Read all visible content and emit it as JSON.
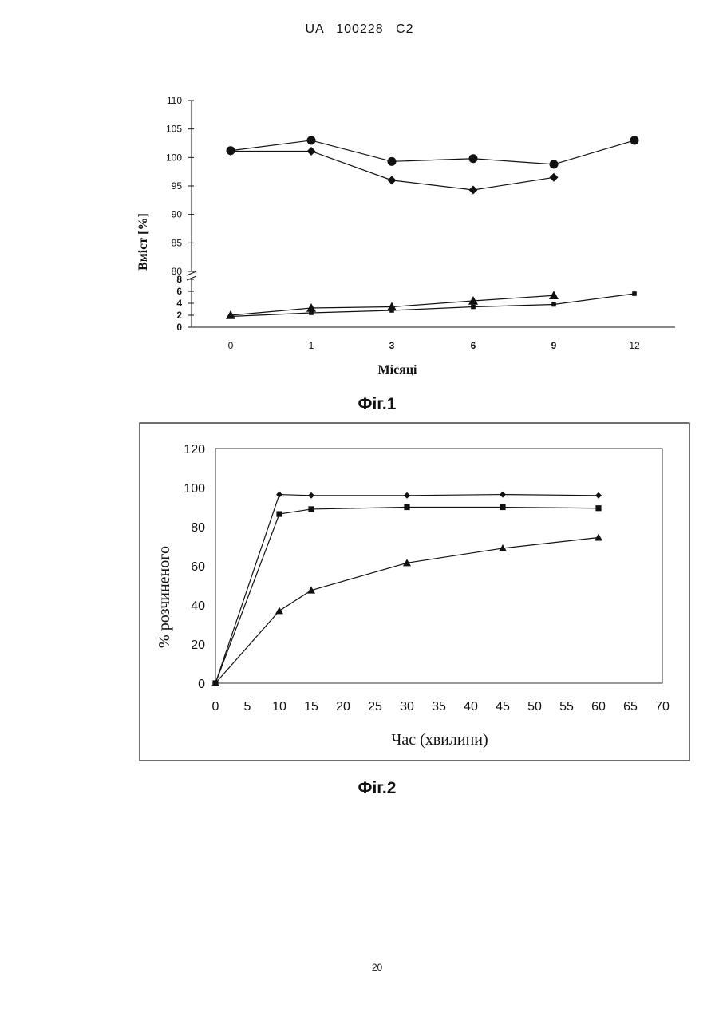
{
  "header": {
    "text": "UA   100228   C2"
  },
  "figures": [
    {
      "caption": "Фіг.1"
    },
    {
      "caption": "Фіг.2"
    }
  ],
  "page_number": "20",
  "chart_data": [
    {
      "type": "line",
      "xlabel": "Місяці",
      "ylabel": "Вміст [%]",
      "categories": [
        "0",
        "1",
        "3",
        "6",
        "9",
        "12"
      ],
      "y_axis_upper": {
        "ylim": [
          80,
          110
        ],
        "ticks": [
          "110",
          "105",
          "100",
          "95",
          "90",
          "85",
          "80"
        ]
      },
      "y_axis_lower": {
        "ylim": [
          0,
          8
        ],
        "ticks": [
          "8",
          "6",
          "4",
          "2",
          "0"
        ]
      },
      "broken_axis": true,
      "grid": false,
      "series": [
        {
          "marker": "circle",
          "values": [
            101.2,
            103.0,
            99.3,
            99.8,
            98.8,
            103.0
          ]
        },
        {
          "marker": "diamond",
          "values": [
            101.1,
            101.1,
            96.0,
            94.3,
            96.5,
            null
          ]
        },
        {
          "marker": "triangle",
          "values": [
            2.0,
            3.2,
            3.4,
            4.4,
            5.3,
            null
          ]
        },
        {
          "marker": "square",
          "values": [
            1.8,
            2.4,
            2.8,
            3.4,
            3.8,
            5.6
          ]
        }
      ]
    },
    {
      "type": "line",
      "xlabel": "Час (хвилини)",
      "ylabel": "% розчиненого",
      "xlim": [
        0,
        70
      ],
      "ylim": [
        0,
        120
      ],
      "xticks": [
        "0",
        "5",
        "10",
        "15",
        "20",
        "25",
        "30",
        "35",
        "40",
        "45",
        "50",
        "55",
        "60",
        "65",
        "70"
      ],
      "yticks": [
        "120",
        "100",
        "80",
        "60",
        "40",
        "20",
        "0"
      ],
      "grid": false,
      "series": [
        {
          "marker": "diamond",
          "x": [
            0,
            10,
            15,
            30,
            45,
            60
          ],
          "values": [
            0,
            96.5,
            96.0,
            96.0,
            96.5,
            96.0
          ]
        },
        {
          "marker": "square",
          "x": [
            0,
            10,
            15,
            30,
            45,
            60
          ],
          "values": [
            0,
            86.5,
            89.0,
            90.0,
            90.0,
            89.5
          ]
        },
        {
          "marker": "triangle",
          "x": [
            0,
            10,
            15,
            30,
            45,
            60
          ],
          "values": [
            0,
            37.0,
            47.5,
            61.5,
            69.0,
            74.5
          ]
        }
      ]
    }
  ]
}
